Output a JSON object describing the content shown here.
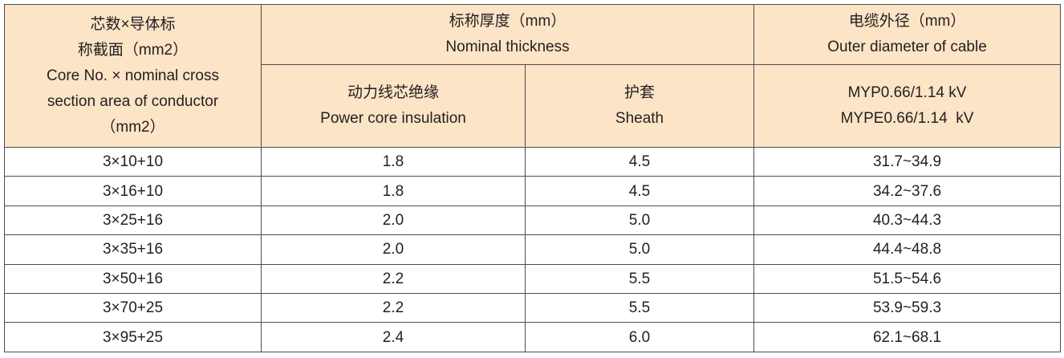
{
  "table": {
    "header": {
      "core": [
        "芯数×导体标",
        "称截面（mm2）",
        "Core No. × nominal cross",
        "section area of conductor",
        "（mm2）"
      ],
      "thickness": [
        "标称厚度（mm）",
        "Nominal thickness"
      ],
      "diameter": [
        "电缆外径（mm）",
        "Outer diameter of cable"
      ],
      "insulation": [
        "动力线芯绝缘",
        "Power core insulation"
      ],
      "sheath": [
        "护套",
        "Sheath"
      ],
      "model": [
        "MYP0.66/1.14 kV",
        "MYPE0.66/1.14  kV"
      ]
    },
    "rows": [
      [
        "3×10+10",
        "1.8",
        "4.5",
        "31.7~34.9"
      ],
      [
        "3×16+10",
        "1.8",
        "4.5",
        "34.2~37.6"
      ],
      [
        "3×25+16",
        "2.0",
        "5.0",
        "40.3~44.3"
      ],
      [
        "3×35+16",
        "2.0",
        "5.0",
        "44.4~48.8"
      ],
      [
        "3×50+16",
        "2.2",
        "5.5",
        "51.5~54.6"
      ],
      [
        "3×70+25",
        "2.2",
        "5.5",
        "53.9~59.3"
      ],
      [
        "3×95+25",
        "2.4",
        "6.0",
        "62.1~68.1"
      ]
    ]
  }
}
